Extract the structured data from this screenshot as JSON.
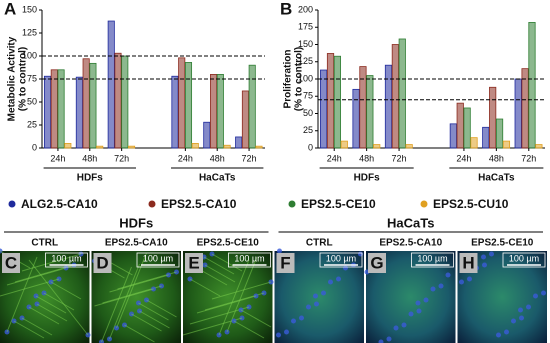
{
  "chart_data": [
    {
      "type": "bar",
      "panel": "A",
      "ylabel": [
        "Metabolic Activity",
        "(% to control)"
      ],
      "categories": [
        "24h",
        "48h",
        "72h",
        "24h",
        "48h",
        "72h"
      ],
      "groups": [
        "HDFs",
        "HaCaTs"
      ],
      "ylim": [
        0,
        150
      ],
      "yticks": [
        0,
        25,
        50,
        75,
        100,
        125,
        150
      ],
      "reference_lines": [
        100,
        75
      ],
      "series": [
        {
          "name": "ALG2.5-CA10",
          "color": "#1f2a9c",
          "values": [
            78,
            77,
            138,
            78,
            28,
            12
          ]
        },
        {
          "name": "EPS2.5-CA10",
          "color": "#8b2a1e",
          "values": [
            85,
            97,
            103,
            98,
            80,
            62
          ]
        },
        {
          "name": "EPS2.5-CE10",
          "color": "#2e7d32",
          "values": [
            85,
            92,
            100,
            93,
            80,
            90
          ]
        },
        {
          "name": "EPS2.5-CU10",
          "color": "#e0a020",
          "values": [
            5,
            2,
            2,
            5,
            3,
            2
          ]
        }
      ]
    },
    {
      "type": "bar",
      "panel": "B",
      "ylabel": [
        "Proliferation",
        "(% to control)"
      ],
      "categories": [
        "24h",
        "48h",
        "72h",
        "24h",
        "48h",
        "72h"
      ],
      "groups": [
        "HDFs",
        "HaCaTs"
      ],
      "ylim": [
        0,
        200
      ],
      "yticks": [
        0,
        25,
        50,
        75,
        100,
        125,
        150,
        175,
        200
      ],
      "reference_lines": [
        100,
        70
      ],
      "series": [
        {
          "name": "ALG2.5-CA10",
          "color": "#1f2a9c",
          "values": [
            113,
            85,
            120,
            35,
            30,
            100
          ]
        },
        {
          "name": "EPS2.5-CA10",
          "color": "#8b2a1e",
          "values": [
            137,
            118,
            150,
            65,
            88,
            115
          ]
        },
        {
          "name": "EPS2.5-CE10",
          "color": "#2e7d32",
          "values": [
            133,
            105,
            158,
            58,
            42,
            182
          ]
        },
        {
          "name": "EPS2.5-CU10",
          "color": "#e0a020",
          "values": [
            10,
            5,
            5,
            15,
            10,
            5
          ]
        }
      ]
    }
  ],
  "images": {
    "groups": [
      {
        "title": "HDFs",
        "panels": [
          {
            "letter": "C",
            "label": "CTRL",
            "scale": "100 µm"
          },
          {
            "letter": "D",
            "label": "EPS2.5-CA10",
            "scale": "100 µm"
          },
          {
            "letter": "E",
            "label": "EPS2.5-CE10",
            "scale": "100 µm"
          }
        ]
      },
      {
        "title": "HaCaTs",
        "panels": [
          {
            "letter": "F",
            "label": "CTRL",
            "scale": "100 µm"
          },
          {
            "letter": "G",
            "label": "EPS2.5-CA10",
            "scale": "100 µm"
          },
          {
            "letter": "H",
            "label": "EPS2.5-CE10",
            "scale": "100 µm"
          }
        ]
      }
    ]
  }
}
